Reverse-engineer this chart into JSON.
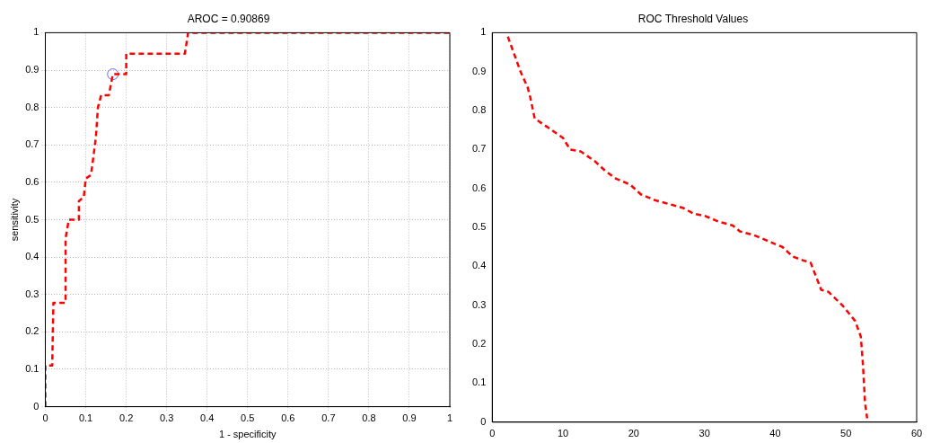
{
  "chart_data": [
    {
      "type": "line",
      "title": "AROC = 0.90869",
      "xlabel": "1 - specificity",
      "ylabel": "sensitivity",
      "xlim": [
        0,
        1
      ],
      "ylim": [
        0,
        1
      ],
      "xticks": [
        0,
        0.1,
        0.2,
        0.3,
        0.4,
        0.5,
        0.6,
        0.7,
        0.8,
        0.9,
        1
      ],
      "yticks": [
        0,
        0.1,
        0.2,
        0.3,
        0.4,
        0.5,
        0.6,
        0.7,
        0.8,
        0.9,
        1
      ],
      "grid": true,
      "legend": false,
      "series": [
        {
          "color": "#ff0000",
          "marker": "none",
          "line_style": "dashed",
          "x": [
            0,
            0,
            0.017,
            0.02,
            0.05,
            0.05,
            0.058,
            0.083,
            0.083,
            0.095,
            0.1,
            0.113,
            0.125,
            0.13,
            0.138,
            0.157,
            0.167,
            0.2,
            0.2,
            0.345,
            0.353,
            1
          ],
          "values": [
            0,
            0.11,
            0.11,
            0.278,
            0.278,
            0.45,
            0.5,
            0.5,
            0.55,
            0.56,
            0.61,
            0.62,
            0.72,
            0.8,
            0.833,
            0.833,
            0.889,
            0.889,
            0.944,
            0.944,
            1,
            1
          ]
        },
        {
          "type": "scatter",
          "color": "#6666ff",
          "marker": "circle",
          "x": [
            0.167
          ],
          "values": [
            0.889
          ]
        }
      ]
    },
    {
      "type": "line",
      "title": "ROC Threshold Values",
      "xlim": [
        0,
        60
      ],
      "ylim": [
        0,
        1
      ],
      "xticks": [
        0,
        10,
        20,
        30,
        40,
        50,
        60
      ],
      "yticks": [
        0,
        0.1,
        0.2,
        0.3,
        0.4,
        0.5,
        0.6,
        0.7,
        0.8,
        0.9,
        1
      ],
      "grid": false,
      "legend": false,
      "series": [
        {
          "color": "#ff0000",
          "marker": "none",
          "line_style": "dashed",
          "x": [
            2.2,
            4,
            5,
            5.3,
            6,
            8,
            10,
            11,
            12.5,
            14.5,
            16,
            17.5,
            19.5,
            21,
            23,
            25,
            27,
            28.5,
            30,
            32,
            34,
            35,
            37,
            39,
            41,
            42.5,
            44,
            45,
            46.5,
            47.5,
            49.5,
            51.3,
            52.1,
            52.4,
            52.7,
            53
          ],
          "values": [
            0.99,
            0.9,
            0.86,
            0.84,
            0.78,
            0.755,
            0.73,
            0.7,
            0.695,
            0.67,
            0.645,
            0.625,
            0.61,
            0.585,
            0.57,
            0.56,
            0.55,
            0.535,
            0.53,
            0.515,
            0.505,
            0.49,
            0.48,
            0.465,
            0.45,
            0.425,
            0.415,
            0.41,
            0.34,
            0.335,
            0.3,
            0.26,
            0.22,
            0.15,
            0.05,
            0.01
          ]
        }
      ]
    }
  ]
}
